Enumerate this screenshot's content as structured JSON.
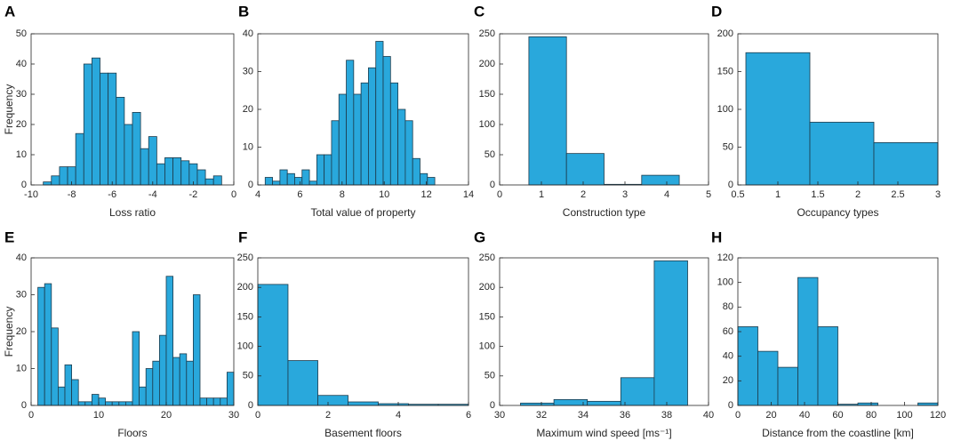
{
  "chart_data": [
    {
      "type": "histogram",
      "panel": "A",
      "xlabel": "Loss ratio",
      "ylabel": "Frequency",
      "color": "#29a8dc",
      "bins": [
        -9.4,
        -9,
        -8.6,
        -8.2,
        -7.8,
        -7.4,
        -7,
        -6.6,
        -6.2,
        -5.8,
        -5.4,
        -5,
        -4.6,
        -4.2,
        -3.8,
        -3.4,
        -3,
        -2.6,
        -2.2,
        -1.8,
        -1.4,
        -1,
        -0.6
      ],
      "values": [
        1,
        3,
        6,
        6,
        17,
        40,
        42,
        37,
        37,
        29,
        20,
        24,
        12,
        16,
        7,
        9,
        9,
        8,
        7,
        5,
        2,
        3
      ],
      "xlim": [
        -10,
        0
      ],
      "xticks": [
        -10,
        -8,
        -6,
        -4,
        -2,
        0
      ],
      "ylim": [
        0,
        50
      ],
      "yticks": [
        0,
        10,
        20,
        30,
        40,
        50
      ]
    },
    {
      "type": "histogram",
      "panel": "B",
      "xlabel": "Total value of property",
      "color": "#29a8dc",
      "bins": [
        4.35,
        4.7,
        5.05,
        5.4,
        5.75,
        6.1,
        6.45,
        6.8,
        7.15,
        7.5,
        7.85,
        8.2,
        8.55,
        8.9,
        9.25,
        9.6,
        9.95,
        10.3,
        10.65,
        11.0,
        11.35,
        11.7,
        12.05,
        12.4
      ],
      "values": [
        2,
        1,
        4,
        3,
        2,
        4,
        1,
        8,
        8,
        17,
        24,
        33,
        24,
        27,
        31,
        38,
        34,
        27,
        20,
        17,
        7,
        3,
        2
      ],
      "xlim": [
        4,
        14
      ],
      "xticks": [
        4,
        6,
        8,
        10,
        12,
        14
      ],
      "ylim": [
        0,
        40
      ],
      "yticks": [
        0,
        10,
        20,
        30,
        40
      ]
    },
    {
      "type": "histogram",
      "panel": "C",
      "xlabel": "Construction type",
      "color": "#29a8dc",
      "bins": [
        0.7,
        1.6,
        2.5,
        3.4,
        4.3
      ],
      "values": [
        245,
        52,
        1,
        16
      ],
      "xlim": [
        0,
        5
      ],
      "xticks": [
        0,
        1,
        2,
        3,
        4,
        5
      ],
      "ylim": [
        0,
        250
      ],
      "yticks": [
        0,
        50,
        100,
        150,
        200,
        250
      ]
    },
    {
      "type": "histogram",
      "panel": "D",
      "xlabel": "Occupancy types",
      "color": "#29a8dc",
      "bins": [
        0.6,
        1.4,
        2.2,
        3
      ],
      "values": [
        175,
        83,
        56
      ],
      "xlim": [
        0.5,
        3
      ],
      "xticks": [
        0.5,
        1,
        1.5,
        2,
        2.5,
        3
      ],
      "ylim": [
        0,
        200
      ],
      "yticks": [
        0,
        50,
        100,
        150,
        200
      ]
    },
    {
      "type": "histogram",
      "panel": "E",
      "xlabel": "Floors",
      "ylabel": "Frequency",
      "color": "#29a8dc",
      "bins": [
        1,
        2,
        3,
        4,
        5,
        6,
        7,
        8,
        9,
        10,
        11,
        12,
        13,
        14,
        15,
        16,
        17,
        18,
        19,
        20,
        21,
        22,
        23,
        24,
        25,
        26,
        27,
        28,
        29,
        30
      ],
      "values": [
        32,
        33,
        21,
        5,
        11,
        7,
        1,
        1,
        3,
        2,
        1,
        1,
        1,
        1,
        20,
        5,
        10,
        12,
        19,
        35,
        13,
        14,
        12,
        30,
        2,
        2,
        2,
        2,
        9
      ],
      "xlim": [
        0,
        30
      ],
      "xticks": [
        0,
        10,
        20,
        30
      ],
      "ylim": [
        0,
        40
      ],
      "yticks": [
        0,
        10,
        20,
        30,
        40
      ]
    },
    {
      "type": "histogram",
      "panel": "F",
      "xlabel": "Basement floors",
      "color": "#29a8dc",
      "bins": [
        0,
        0.86,
        1.71,
        2.57,
        3.43,
        4.29,
        5.14,
        6
      ],
      "values": [
        205,
        76,
        17,
        6,
        3,
        2,
        2
      ],
      "xlim": [
        0,
        6
      ],
      "xticks": [
        0,
        2,
        4,
        6
      ],
      "ylim": [
        0,
        250
      ],
      "yticks": [
        0,
        50,
        100,
        150,
        200,
        250
      ]
    },
    {
      "type": "histogram",
      "panel": "G",
      "xlabel": "Maximum wind speed [ms⁻¹]",
      "color": "#29a8dc",
      "bins": [
        31,
        32.6,
        34.2,
        35.8,
        37.4,
        39
      ],
      "values": [
        4,
        10,
        7,
        47,
        245
      ],
      "xlim": [
        30,
        40
      ],
      "xticks": [
        30,
        32,
        34,
        36,
        38,
        40
      ],
      "ylim": [
        0,
        250
      ],
      "yticks": [
        0,
        50,
        100,
        150,
        200,
        250
      ]
    },
    {
      "type": "histogram",
      "panel": "H",
      "xlabel": "Distance from the coastline [km]",
      "color": "#29a8dc",
      "bins": [
        0,
        12,
        24,
        36,
        48,
        60,
        72,
        84,
        96,
        108,
        120
      ],
      "values": [
        64,
        44,
        31,
        104,
        64,
        1,
        2,
        0,
        0,
        2
      ],
      "xlim": [
        0,
        120
      ],
      "xticks": [
        0,
        20,
        40,
        60,
        80,
        100,
        120
      ],
      "ylim": [
        0,
        120
      ],
      "yticks": [
        0,
        20,
        40,
        60,
        80,
        100,
        120
      ]
    }
  ]
}
